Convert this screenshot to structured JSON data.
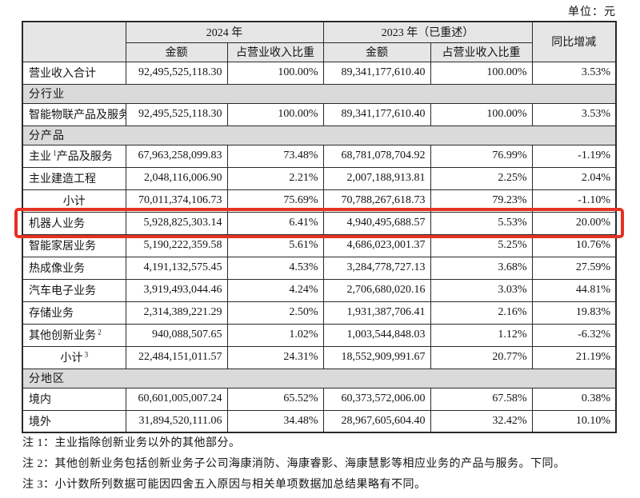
{
  "unit_label": "单位：元",
  "colors": {
    "highlight_box": "#e53222",
    "header_bg": "#e6e6e6",
    "section_bg": "#dadada",
    "border": "#2a2a2a"
  },
  "table": {
    "header": {
      "group_2024": "2024 年",
      "group_2023": "2023 年（已重述）",
      "yoy": "同比增减",
      "amount_2024": "金额",
      "pct_2024": "占营业收入比重",
      "amount_2023": "金额",
      "pct_2023": "占营业收入比重"
    },
    "rows": [
      {
        "type": "data",
        "label": "营业收入合计",
        "amount_2024": "92,495,525,118.30",
        "pct_2024": "100.00%",
        "amount_2023": "89,341,177,610.40",
        "pct_2023": "100.00%",
        "yoy": "3.53%"
      },
      {
        "type": "section",
        "label": "分行业"
      },
      {
        "type": "data",
        "label": "智能物联产品及服务",
        "amount_2024": "92,495,525,118.30",
        "pct_2024": "100.00%",
        "amount_2023": "89,341,177,610.40",
        "pct_2023": "100.00%",
        "yoy": "3.53%"
      },
      {
        "type": "section",
        "label": "分产品"
      },
      {
        "type": "data",
        "label": "主业",
        "sup": "1",
        "label2": "产品及服务",
        "amount_2024": "67,963,258,099.83",
        "pct_2024": "73.48%",
        "amount_2023": "68,781,078,704.92",
        "pct_2023": "76.99%",
        "yoy": "-1.19%"
      },
      {
        "type": "data",
        "label": "主业建造工程",
        "amount_2024": "2,048,116,006.90",
        "pct_2024": "2.21%",
        "amount_2023": "2,007,188,913.81",
        "pct_2023": "2.25%",
        "yoy": "2.04%"
      },
      {
        "type": "data",
        "label": "小计",
        "center": true,
        "amount_2024": "70,011,374,106.73",
        "pct_2024": "75.69%",
        "amount_2023": "70,788,267,618.73",
        "pct_2023": "79.23%",
        "yoy": "-1.10%"
      },
      {
        "type": "data",
        "label": "机器人业务",
        "highlight": true,
        "amount_2024": "5,928,825,303.14",
        "pct_2024": "6.41%",
        "amount_2023": "4,940,495,688.57",
        "pct_2023": "5.53%",
        "yoy": "20.00%"
      },
      {
        "type": "data",
        "label": "智能家居业务",
        "amount_2024": "5,190,222,359.58",
        "pct_2024": "5.61%",
        "amount_2023": "4,686,023,001.37",
        "pct_2023": "5.25%",
        "yoy": "10.76%"
      },
      {
        "type": "data",
        "label": "热成像业务",
        "amount_2024": "4,191,132,575.45",
        "pct_2024": "4.53%",
        "amount_2023": "3,284,778,727.13",
        "pct_2023": "3.68%",
        "yoy": "27.59%"
      },
      {
        "type": "data",
        "label": "汽车电子业务",
        "amount_2024": "3,919,493,044.46",
        "pct_2024": "4.24%",
        "amount_2023": "2,706,680,020.16",
        "pct_2023": "3.03%",
        "yoy": "44.81%"
      },
      {
        "type": "data",
        "label": "存储业务",
        "amount_2024": "2,314,389,221.29",
        "pct_2024": "2.50%",
        "amount_2023": "1,931,387,706.41",
        "pct_2023": "2.16%",
        "yoy": "19.83%"
      },
      {
        "type": "data",
        "label": "其他创新业务",
        "sup": "2",
        "amount_2024": "940,088,507.65",
        "pct_2024": "1.02%",
        "amount_2023": "1,003,544,848.03",
        "pct_2023": "1.12%",
        "yoy": "-6.32%"
      },
      {
        "type": "data",
        "label": "小计",
        "sup": "3",
        "center": true,
        "amount_2024": "22,484,151,011.57",
        "pct_2024": "24.31%",
        "amount_2023": "18,552,909,991.67",
        "pct_2023": "20.77%",
        "yoy": "21.19%"
      },
      {
        "type": "section",
        "label": "分地区"
      },
      {
        "type": "data",
        "label": "境内",
        "amount_2024": "60,601,005,007.24",
        "pct_2024": "65.52%",
        "amount_2023": "60,373,572,006.00",
        "pct_2023": "67.58%",
        "yoy": "0.38%"
      },
      {
        "type": "data",
        "label": "境外",
        "amount_2024": "31,894,520,111.06",
        "pct_2024": "34.48%",
        "amount_2023": "28,967,605,604.40",
        "pct_2023": "32.42%",
        "yoy": "10.10%"
      }
    ]
  },
  "notes": [
    "注 1：主业指除创新业务以外的其他部分。",
    "注 2：其他创新业务包括创新业务子公司海康消防、海康睿影、海康慧影等相应业务的产品与服务。下同。",
    "注 3：小计数所列数据可能因四舍五入原因与相关单项数据加总结果略有不同。"
  ]
}
